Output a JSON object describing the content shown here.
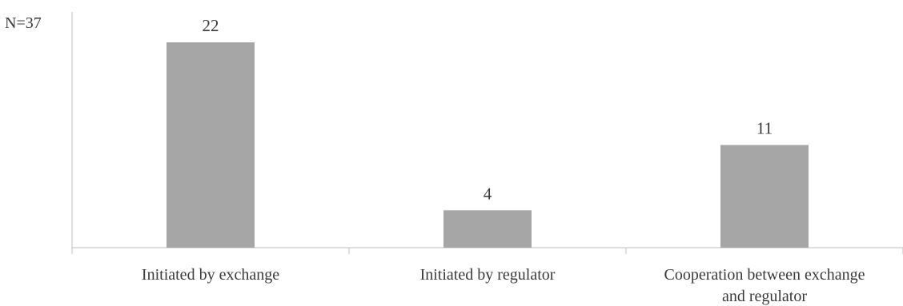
{
  "chart_data": {
    "type": "bar",
    "note": "N=37",
    "categories": [
      [
        "Initiated by exchange"
      ],
      [
        "Initiated by regulator"
      ],
      [
        "Cooperation between exchange",
        "and regulator"
      ]
    ],
    "values": [
      22,
      4,
      11
    ],
    "data_labels": [
      "22",
      "4",
      "11"
    ],
    "ylim": [
      0,
      22
    ],
    "grid": false,
    "legend": "none",
    "bar_color": "#a6a6a6",
    "axis_color": "#bfbfbf"
  }
}
